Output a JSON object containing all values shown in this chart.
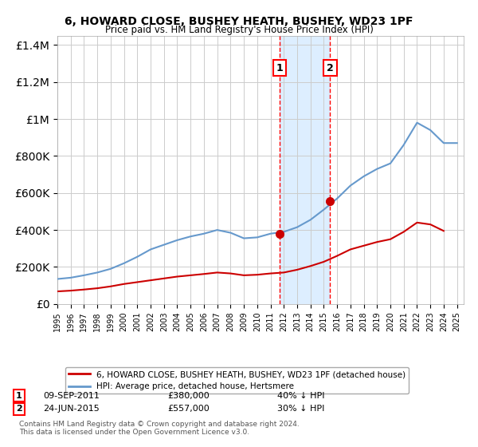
{
  "title": "6, HOWARD CLOSE, BUSHEY HEATH, BUSHEY, WD23 1PF",
  "subtitle": "Price paid vs. HM Land Registry's House Price Index (HPI)",
  "legend_line1": "6, HOWARD CLOSE, BUSHEY HEATH, BUSHEY, WD23 1PF (detached house)",
  "legend_line2": "HPI: Average price, detached house, Hertsmere",
  "annotation1_label": "1",
  "annotation1_date": "09-SEP-2011",
  "annotation1_price": "£380,000",
  "annotation1_note": "40% ↓ HPI",
  "annotation2_label": "2",
  "annotation2_date": "24-JUN-2015",
  "annotation2_price": "£557,000",
  "annotation2_note": "30% ↓ HPI",
  "footnote": "Contains HM Land Registry data © Crown copyright and database right 2024.\nThis data is licensed under the Open Government Licence v3.0.",
  "sale1_year": 2011.69,
  "sale1_price": 380000,
  "sale2_year": 2015.48,
  "sale2_price": 557000,
  "red_color": "#cc0000",
  "blue_color": "#6699cc",
  "background_color": "#ffffff",
  "grid_color": "#cccccc",
  "shaded_color": "#ddeeff",
  "ylim_max": 1450000,
  "ylim_min": 0,
  "xlim_min": 1995,
  "xlim_max": 2025.5,
  "hpi_years": [
    1995,
    1996,
    1997,
    1998,
    1999,
    2000,
    2001,
    2002,
    2003,
    2004,
    2005,
    2006,
    2007,
    2008,
    2009,
    2010,
    2011,
    2012,
    2013,
    2014,
    2015,
    2016,
    2017,
    2018,
    2019,
    2020,
    2021,
    2022,
    2023,
    2024,
    2025
  ],
  "hpi_values": [
    135000,
    142000,
    155000,
    170000,
    190000,
    220000,
    255000,
    295000,
    320000,
    345000,
    365000,
    380000,
    400000,
    385000,
    355000,
    360000,
    380000,
    390000,
    415000,
    455000,
    510000,
    570000,
    640000,
    690000,
    730000,
    760000,
    860000,
    980000,
    940000,
    870000,
    870000
  ],
  "price_paid_years": [
    1995,
    1996,
    1997,
    1998,
    1999,
    2000,
    2001,
    2002,
    2003,
    2004,
    2005,
    2006,
    2007,
    2008,
    2009,
    2010,
    2011,
    2012,
    2013,
    2014,
    2015,
    2016,
    2017,
    2018,
    2019,
    2020,
    2021,
    2022,
    2023,
    2024
  ],
  "price_paid_values": [
    68000,
    72000,
    78000,
    85000,
    95000,
    108000,
    118000,
    128000,
    138000,
    148000,
    155000,
    162000,
    170000,
    165000,
    155000,
    158000,
    165000,
    170000,
    185000,
    205000,
    228000,
    260000,
    295000,
    315000,
    335000,
    350000,
    390000,
    440000,
    430000,
    395000
  ]
}
